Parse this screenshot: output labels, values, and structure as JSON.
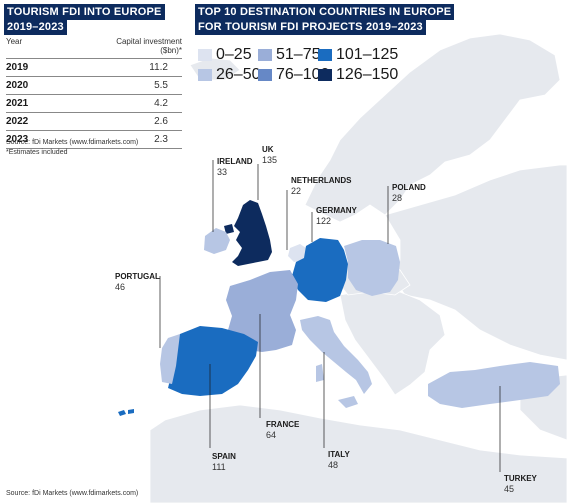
{
  "left_title_lines": [
    "TOURISM FDI INTO EUROPE",
    "2019–2023"
  ],
  "table": {
    "col_year": "Year",
    "col_value_lines": [
      "Capital investment",
      "($bn)*"
    ],
    "rows": [
      {
        "year": "2019",
        "value": "11.2"
      },
      {
        "year": "2020",
        "value": "5.5"
      },
      {
        "year": "2021",
        "value": "4.2"
      },
      {
        "year": "2022",
        "value": "2.6"
      },
      {
        "year": "2023",
        "value": "2.3"
      }
    ]
  },
  "table_source": "Source: fDi Markets (www.fdimarkets.com)",
  "table_note": "*Estimates included",
  "map_title_lines": [
    "TOP 10 DESTINATION COUNTRIES IN EUROPE",
    "FOR TOURISM FDI PROJECTS 2019–2023"
  ],
  "legend": [
    {
      "label": "0–25",
      "color": "#dde3f0"
    },
    {
      "label": "26–50",
      "color": "#b7c6e4"
    },
    {
      "label": "51–75",
      "color": "#9aaed8"
    },
    {
      "label": "76–100",
      "color": "#6688c6"
    },
    {
      "label": "101–125",
      "color": "#1a6cc0"
    },
    {
      "label": "126–150",
      "color": "#0d2b5e"
    }
  ],
  "countries": [
    {
      "name": "UK",
      "value": "135"
    },
    {
      "name": "IRELAND",
      "value": "33"
    },
    {
      "name": "NETHERLANDS",
      "value": "22"
    },
    {
      "name": "GERMANY",
      "value": "122"
    },
    {
      "name": "POLAND",
      "value": "28"
    },
    {
      "name": "PORTUGAL",
      "value": "46"
    },
    {
      "name": "FRANCE",
      "value": "64"
    },
    {
      "name": "SPAIN",
      "value": "111"
    },
    {
      "name": "ITALY",
      "value": "48"
    },
    {
      "name": "TURKEY",
      "value": "45"
    }
  ],
  "map_source": "Source: fDi Markets (www.fdimarkets.com)"
}
